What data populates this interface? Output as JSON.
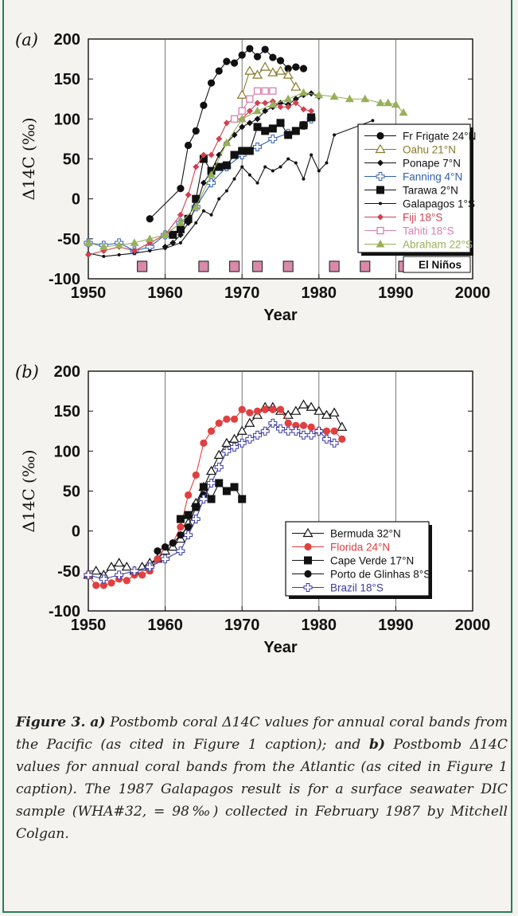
{
  "caption": {
    "fig_label": "Figure 3.",
    "a_label": "a)",
    "a_text": "Postbomb coral Δ14C values for annual coral bands from the Pacific (as cited in Figure 1 caption); and",
    "b_label": "b)",
    "b_text": "Postbomb Δ14C values for annual coral bands from the Atlantic (as cited in Figure 1 caption). The 1987 Galapagos result is for a surface seawater DIC sample (WHA#32, = 98‰) collected in February 1987 by Mitchell Colgan."
  },
  "chart_data": [
    {
      "panel": "(a)",
      "type": "line",
      "xlabel": "Year",
      "ylabel": "Δ14C (‰)",
      "xlim": [
        1950,
        2000
      ],
      "ylim": [
        -100,
        200
      ],
      "xticks": [
        1950,
        1960,
        1970,
        1980,
        1990,
        2000
      ],
      "yticks": [
        -100,
        -50,
        0,
        50,
        100,
        150,
        200
      ],
      "grid": "vertical",
      "legend": "right",
      "series": [
        {
          "name": "Fr Frigate 24°N",
          "color": "#111111",
          "marker": "circle",
          "x": [
            1958,
            1962,
            1963,
            1964,
            1965,
            1966,
            1967,
            1968,
            1969,
            1970,
            1971,
            1972,
            1973,
            1974,
            1975,
            1976,
            1977,
            1978
          ],
          "y": [
            -25,
            13,
            67,
            85,
            117,
            145,
            160,
            172,
            170,
            180,
            188,
            178,
            187,
            177,
            173,
            163,
            165,
            163
          ]
        },
        {
          "name": "Oahu 21°N",
          "color": "#8a7a2a",
          "marker": "tri-open",
          "x": [
            1970,
            1971,
            1972,
            1973,
            1974,
            1975,
            1976,
            1977
          ],
          "y": [
            130,
            160,
            155,
            165,
            158,
            160,
            155,
            140
          ]
        },
        {
          "name": "Ponape 7°N",
          "color": "#111111",
          "marker": "diamond",
          "x": [
            1960,
            1961,
            1962,
            1963,
            1964,
            1965,
            1966,
            1967,
            1968,
            1969,
            1970,
            1971,
            1972,
            1973,
            1974,
            1975,
            1976,
            1977,
            1978,
            1979,
            1980
          ],
          "y": [
            -60,
            -55,
            -45,
            -30,
            -10,
            20,
            35,
            55,
            70,
            80,
            90,
            95,
            100,
            110,
            115,
            120,
            118,
            125,
            130,
            132,
            128
          ]
        },
        {
          "name": "Fanning 4°N",
          "color": "#3060b0",
          "marker": "plus-open",
          "x": [
            1950,
            1952,
            1954,
            1956,
            1958,
            1960,
            1962,
            1964,
            1966,
            1968,
            1970,
            1972,
            1974,
            1976,
            1978,
            1979
          ],
          "y": [
            -55,
            -58,
            -55,
            -65,
            -60,
            -45,
            -30,
            -10,
            20,
            40,
            55,
            65,
            75,
            82,
            92,
            100
          ]
        },
        {
          "name": "Tarawa 2°N",
          "color": "#111111",
          "marker": "square",
          "x": [
            1961,
            1962,
            1963,
            1964,
            1965,
            1966,
            1967,
            1968,
            1969,
            1970,
            1971,
            1972,
            1973,
            1974,
            1975,
            1976,
            1977,
            1978,
            1979
          ],
          "y": [
            -45,
            -38,
            -25,
            0,
            50,
            35,
            40,
            42,
            55,
            60,
            60,
            90,
            85,
            88,
            95,
            80,
            85,
            92,
            102
          ]
        },
        {
          "name": "Galapagos 1°S",
          "color": "#111111",
          "marker": "dot",
          "x": [
            1950,
            1952,
            1954,
            1956,
            1958,
            1960,
            1962,
            1964,
            1965,
            1966,
            1967,
            1968,
            1969,
            1970,
            1971,
            1972,
            1973,
            1974,
            1975,
            1976,
            1977,
            1978,
            1979,
            1980,
            1981,
            1982,
            1987
          ],
          "y": [
            -68,
            -72,
            -70,
            -68,
            -65,
            -62,
            -55,
            -30,
            -15,
            -20,
            0,
            10,
            25,
            40,
            30,
            20,
            40,
            35,
            40,
            50,
            45,
            25,
            55,
            35,
            45,
            80,
            98
          ]
        },
        {
          "name": "Fiji 18°S",
          "color": "#d04050",
          "marker": "diamond",
          "x": [
            1950,
            1952,
            1954,
            1956,
            1958,
            1960,
            1962,
            1963,
            1964,
            1965,
            1966,
            1967,
            1968,
            1969,
            1970,
            1971,
            1972,
            1973,
            1974,
            1975,
            1976,
            1977,
            1978,
            1979
          ],
          "y": [
            -70,
            -65,
            -60,
            -65,
            -55,
            -45,
            -20,
            5,
            40,
            55,
            55,
            75,
            95,
            100,
            100,
            110,
            120,
            120,
            122,
            115,
            115,
            120,
            112,
            110
          ]
        },
        {
          "name": "Tahiti 18°S",
          "color": "#d880b0",
          "marker": "square-open",
          "x": [
            1969,
            1970,
            1971,
            1972,
            1973,
            1974
          ],
          "y": [
            100,
            110,
            125,
            135,
            135,
            135
          ]
        },
        {
          "name": "Abraham 22°S",
          "color": "#98b05a",
          "marker": "tri-filled",
          "x": [
            1950,
            1952,
            1954,
            1956,
            1958,
            1960,
            1962,
            1964,
            1966,
            1968,
            1970,
            1972,
            1974,
            1976,
            1978,
            1980,
            1982,
            1984,
            1986,
            1988,
            1989,
            1990,
            1991
          ],
          "y": [
            -55,
            -60,
            -58,
            -55,
            -50,
            -45,
            -30,
            -10,
            30,
            70,
            100,
            110,
            118,
            125,
            133,
            130,
            128,
            125,
            125,
            120,
            120,
            118,
            108
          ]
        }
      ],
      "el_ninos": {
        "label": "El Niños",
        "years": [
          1957,
          1965,
          1969,
          1972,
          1976,
          1982,
          1986,
          1991
        ],
        "y": -85
      }
    },
    {
      "panel": "(b)",
      "type": "line",
      "xlabel": "Year",
      "ylabel": "Δ14C (‰)",
      "xlim": [
        1950,
        2000
      ],
      "ylim": [
        -100,
        200
      ],
      "xticks": [
        1950,
        1960,
        1970,
        1980,
        1990,
        2000
      ],
      "yticks": [
        -100,
        -50,
        0,
        50,
        100,
        150,
        200
      ],
      "grid": "vertical",
      "legend": "lower-right",
      "series": [
        {
          "name": "Bermuda 32°N",
          "color": "#111111",
          "marker": "tri-open",
          "x": [
            1950,
            1951,
            1952,
            1953,
            1954,
            1955,
            1956,
            1957,
            1958,
            1959,
            1960,
            1961,
            1962,
            1963,
            1964,
            1965,
            1966,
            1967,
            1968,
            1969,
            1970,
            1971,
            1972,
            1973,
            1974,
            1975,
            1976,
            1977,
            1978,
            1979,
            1980,
            1981,
            1982,
            1983
          ],
          "y": [
            -55,
            -50,
            -55,
            -45,
            -40,
            -45,
            -50,
            -45,
            -40,
            -35,
            -25,
            -20,
            -10,
            10,
            35,
            55,
            75,
            95,
            110,
            115,
            125,
            135,
            145,
            155,
            155,
            150,
            145,
            150,
            158,
            155,
            150,
            145,
            148,
            130
          ]
        },
        {
          "name": "Florida 24°N",
          "color": "#e04040",
          "marker": "circle",
          "x": [
            1950,
            1951,
            1952,
            1953,
            1954,
            1955,
            1956,
            1957,
            1958,
            1959,
            1960,
            1961,
            1962,
            1963,
            1964,
            1965,
            1966,
            1967,
            1968,
            1969,
            1970,
            1971,
            1972,
            1973,
            1974,
            1975,
            1976,
            1977,
            1978,
            1979,
            1980,
            1981,
            1982,
            1983
          ],
          "y": [
            -55,
            -68,
            -68,
            -65,
            -60,
            -62,
            -55,
            -55,
            -50,
            -35,
            -20,
            -15,
            5,
            45,
            70,
            110,
            125,
            135,
            140,
            140,
            152,
            148,
            150,
            152,
            152,
            152,
            135,
            132,
            132,
            130,
            125,
            125,
            125,
            115
          ]
        },
        {
          "name": "Cape Verde 17°N",
          "color": "#111111",
          "marker": "square",
          "x": [
            1962,
            1963,
            1964,
            1965,
            1966,
            1967,
            1968,
            1969,
            1970
          ],
          "y": [
            15,
            20,
            30,
            55,
            40,
            60,
            50,
            55,
            40
          ]
        },
        {
          "name": "Porto de Glinhas 8°S",
          "color": "#111111",
          "marker": "circle",
          "x": [
            1959,
            1960,
            1961,
            1962,
            1963,
            1964,
            1965
          ],
          "y": [
            -25,
            -20,
            -15,
            -5,
            5,
            30,
            45
          ]
        },
        {
          "name": "Brazil 18°S",
          "color": "#3a3aa0",
          "marker": "plus-open",
          "x": [
            1950,
            1952,
            1954,
            1956,
            1958,
            1960,
            1962,
            1963,
            1964,
            1965,
            1966,
            1967,
            1968,
            1969,
            1970,
            1971,
            1972,
            1973,
            1974,
            1975,
            1976,
            1977,
            1978,
            1979,
            1980,
            1981,
            1982
          ],
          "y": [
            -55,
            -60,
            -55,
            -50,
            -45,
            -35,
            -25,
            -5,
            15,
            40,
            60,
            80,
            100,
            105,
            110,
            115,
            120,
            125,
            135,
            128,
            125,
            125,
            120,
            120,
            125,
            115,
            110
          ]
        }
      ]
    }
  ]
}
